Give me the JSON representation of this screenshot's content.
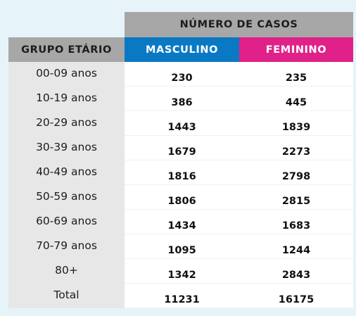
{
  "chart_data": {
    "type": "table",
    "title": "NÚMERO DE CASOS",
    "columns": [
      "GRUPO ETÁRIO",
      "MASCULINO",
      "FEMININO"
    ],
    "rows": [
      [
        "00-09 anos",
        "230",
        "235"
      ],
      [
        "10-19 anos",
        "386",
        "445"
      ],
      [
        "20-29 anos",
        "1443",
        "1839"
      ],
      [
        "30-39 anos",
        "1679",
        "2273"
      ],
      [
        "40-49 anos",
        "1816",
        "2798"
      ],
      [
        "50-59 anos",
        "1806",
        "2815"
      ],
      [
        "60-69 anos",
        "1434",
        "1683"
      ],
      [
        "70-79 anos",
        "1095",
        "1244"
      ],
      [
        "80+",
        "1342",
        "2843"
      ],
      [
        "Total",
        "11231",
        "16175"
      ]
    ]
  },
  "colors": {
    "background": "#e6f4f9",
    "header_gray": "#a7a7a7",
    "masculino": "#0a79c4",
    "feminino": "#e0218a",
    "group_cell": "#e7e7e7",
    "value_cell": "#ffffff"
  }
}
